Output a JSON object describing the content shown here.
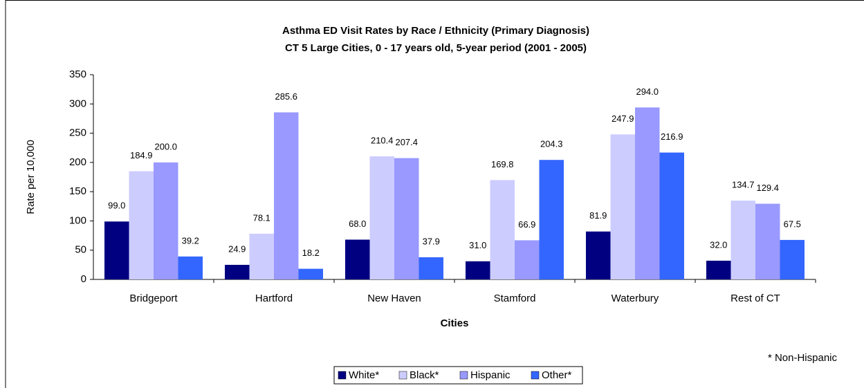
{
  "chart_data": {
    "type": "bar",
    "title": "Asthma ED Visit Rates by Race / Ethnicity (Primary Diagnosis)",
    "subtitle": "CT 5 Large Cities, 0 - 17 years old, 5-year period (2001 - 2005)",
    "x_label": "Cities",
    "y_label": "Rate per 10,000",
    "annotation": "* Non-Hispanic",
    "categories": [
      "Bridgeport",
      "Hartford",
      "New Haven",
      "Stamford",
      "Waterbury",
      "Rest of CT"
    ],
    "series": [
      {
        "name": "White*",
        "color": "#000080",
        "values": [
          99.0,
          24.9,
          68.0,
          31.0,
          81.9,
          32.0
        ],
        "value_labels": [
          "99.0",
          "24.9",
          "68.0",
          "31.0",
          "81.9",
          "32.0"
        ]
      },
      {
        "name": "Black*",
        "color": "#ccccff",
        "values": [
          184.9,
          78.1,
          210.4,
          169.8,
          247.9,
          134.7
        ],
        "value_labels": [
          "184.9",
          "78.1",
          "210.4",
          "169.8",
          "247.9",
          "134.7"
        ]
      },
      {
        "name": "Hispanic",
        "color": "#9999ff",
        "values": [
          200.0,
          285.6,
          207.4,
          66.9,
          294.0,
          129.4
        ],
        "value_labels": [
          "200.0",
          "285.6",
          "207.4",
          "66.9",
          "294.0",
          "129.4"
        ]
      },
      {
        "name": "Other*",
        "color": "#3366ff",
        "values": [
          39.2,
          18.2,
          37.9,
          204.3,
          216.9,
          67.5
        ],
        "value_labels": [
          "39.2",
          "18.2",
          "37.9",
          "204.3",
          "216.9",
          "67.5"
        ]
      }
    ],
    "ylim": [
      0,
      350
    ],
    "yticks": [
      0,
      50,
      100,
      150,
      200,
      250,
      300,
      350
    ],
    "grid": false,
    "legend": "bottom"
  }
}
